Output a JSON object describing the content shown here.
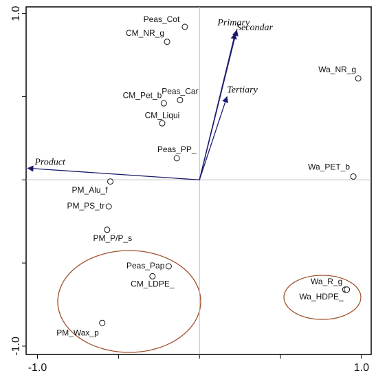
{
  "chart_data": {
    "type": "biplot",
    "xlim": [
      -1.07,
      1.06
    ],
    "ylim": [
      -1.05,
      1.04
    ],
    "xticks": [
      {
        "value": -1,
        "label": "-1.0"
      },
      {
        "value": 1,
        "label": "1.0"
      }
    ],
    "yticks": [
      {
        "value": -1,
        "label": "-1.0"
      },
      {
        "value": 1,
        "label": "1.0"
      }
    ],
    "minor_xticks": [
      -0.5,
      0,
      0.5
    ],
    "minor_yticks": [
      -0.5,
      0,
      0.5
    ],
    "point_color": "#111111",
    "vector_color": "#1a1a6e",
    "points": {
      "labels": [
        "Peas_Cot",
        "CM_NR_g",
        "Wa_NR_g",
        "CM_Pet_b",
        "Peas_Car",
        "CM_Liqui",
        "Peas_PP_",
        "Wa_PET_b",
        "PM_Alu_f",
        "PM_PS_tr",
        "PM_P/P_s",
        "Peas_Pap",
        "CM_LDPE_",
        "Wa_R_g",
        "Wa_HDPE_",
        "PM_Wax_p"
      ],
      "x": [
        -0.09,
        -0.2,
        0.98,
        -0.22,
        -0.12,
        -0.23,
        -0.14,
        0.95,
        -0.55,
        -0.56,
        -0.57,
        -0.19,
        -0.29,
        0.9,
        0.91,
        -0.6
      ],
      "y": [
        0.92,
        0.83,
        0.61,
        0.46,
        0.48,
        0.34,
        0.13,
        0.02,
        -0.01,
        -0.16,
        -0.3,
        -0.52,
        -0.58,
        -0.66,
        -0.66,
        -0.86
      ]
    },
    "vectors": {
      "labels": [
        "Primary",
        "Secondar",
        "Tertiary",
        "Product"
      ],
      "x": [
        0.23,
        0.22,
        0.17,
        -1.06
      ],
      "y": [
        0.9,
        0.88,
        0.5,
        0.07
      ]
    }
  }
}
